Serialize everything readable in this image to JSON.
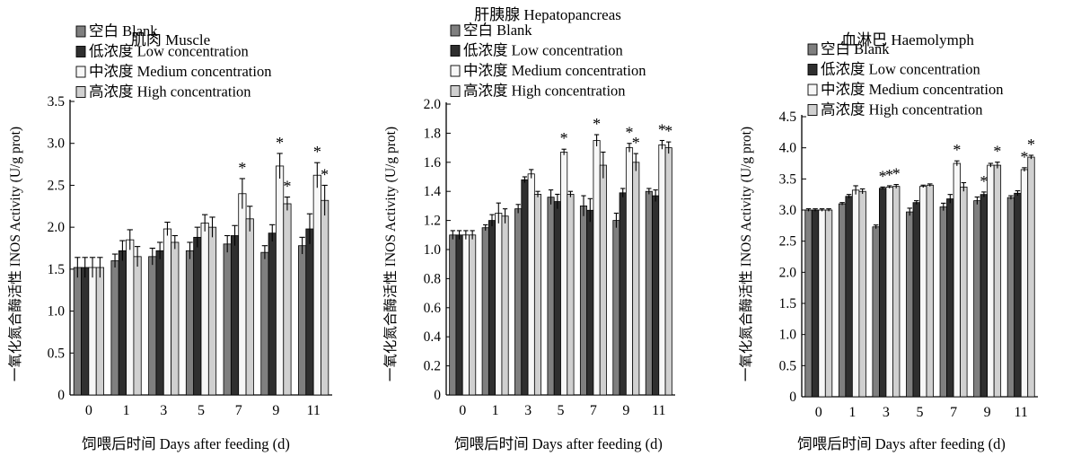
{
  "chart_data": [
    {
      "type": "bar",
      "title": "肌肉 Muscle",
      "xlabel": "饲喂后时间 Days after feeding (d)",
      "ylabel": "一氧化氮合酶活性 INOS Activity (U/g prot)",
      "ylim": [
        0,
        3.5
      ],
      "yticks": [
        "0",
        "0.5",
        "1.0",
        "1.5",
        "2.0",
        "2.5",
        "3.0",
        "3.5"
      ],
      "categories": [
        "0",
        "1",
        "3",
        "5",
        "7",
        "9",
        "11"
      ],
      "legend_position": "top-left",
      "grid": false,
      "series": [
        {
          "name": "空白 Blank",
          "color": "#7f7f7f",
          "values": [
            1.52,
            1.6,
            1.65,
            1.72,
            1.8,
            1.7,
            1.78
          ],
          "errors": [
            0.12,
            0.08,
            0.1,
            0.1,
            0.1,
            0.08,
            0.1
          ]
        },
        {
          "name": "低浓度 Low concentration",
          "color": "#2f2f2f",
          "values": [
            1.52,
            1.72,
            1.72,
            1.88,
            1.9,
            1.93,
            1.98
          ],
          "errors": [
            0.12,
            0.12,
            0.1,
            0.12,
            0.12,
            0.1,
            0.18
          ]
        },
        {
          "name": "中浓度 Medium concentration",
          "color": "#f7f7f7",
          "values": [
            1.52,
            1.85,
            1.98,
            2.05,
            2.4,
            2.73,
            2.62
          ],
          "errors": [
            0.12,
            0.12,
            0.08,
            0.1,
            0.18,
            0.15,
            0.15
          ]
        },
        {
          "name": "高浓度 High concentration",
          "color": "#d0d0d0",
          "values": [
            1.52,
            1.65,
            1.82,
            2.0,
            2.1,
            2.28,
            2.32
          ],
          "errors": [
            0.12,
            0.12,
            0.08,
            0.12,
            0.15,
            0.08,
            0.18
          ]
        }
      ],
      "annotations": [
        {
          "category": "7",
          "series": 2,
          "text": "*"
        },
        {
          "category": "9",
          "series": 2,
          "text": "*"
        },
        {
          "category": "9",
          "series": 3,
          "text": "*"
        },
        {
          "category": "11",
          "series": 2,
          "text": "*"
        },
        {
          "category": "11",
          "series": 3,
          "text": "*"
        }
      ]
    },
    {
      "type": "bar",
      "title": "肝胰腺 Hepatopancreas",
      "xlabel": "饲喂后时间 Days after feeding (d)",
      "ylabel": "一氧化氮合酶活性 INOS Activity (U/g prot)",
      "ylim": [
        0,
        2.0
      ],
      "yticks": [
        "0",
        "0.2",
        "0.4",
        "0.6",
        "0.8",
        "1.0",
        "1.2",
        "1.4",
        "1.6",
        "1.8",
        "2.0"
      ],
      "categories": [
        "0",
        "1",
        "3",
        "5",
        "7",
        "9",
        "11"
      ],
      "legend_position": "top-left",
      "grid": false,
      "series": [
        {
          "name": "空白 Blank",
          "color": "#7f7f7f",
          "values": [
            1.1,
            1.15,
            1.28,
            1.36,
            1.3,
            1.2,
            1.4
          ],
          "errors": [
            0.03,
            0.02,
            0.03,
            0.05,
            0.07,
            0.05,
            0.02
          ]
        },
        {
          "name": "低浓度 Low concentration",
          "color": "#2f2f2f",
          "values": [
            1.1,
            1.2,
            1.48,
            1.33,
            1.27,
            1.39,
            1.37
          ],
          "errors": [
            0.03,
            0.04,
            0.02,
            0.05,
            0.08,
            0.03,
            0.04
          ]
        },
        {
          "name": "中浓度 Medium concentration",
          "color": "#f7f7f7",
          "values": [
            1.1,
            1.25,
            1.52,
            1.67,
            1.75,
            1.7,
            1.72
          ],
          "errors": [
            0.03,
            0.07,
            0.03,
            0.02,
            0.04,
            0.03,
            0.03
          ]
        },
        {
          "name": "高浓度 High concentration",
          "color": "#d0d0d0",
          "values": [
            1.1,
            1.23,
            1.38,
            1.38,
            1.58,
            1.6,
            1.7
          ],
          "errors": [
            0.03,
            0.05,
            0.02,
            0.02,
            0.09,
            0.06,
            0.04
          ]
        }
      ],
      "annotations": [
        {
          "category": "5",
          "series": 2,
          "text": "*"
        },
        {
          "category": "7",
          "series": 2,
          "text": "*"
        },
        {
          "category": "9",
          "series": 2,
          "text": "*"
        },
        {
          "category": "9",
          "series": 3,
          "text": "*"
        },
        {
          "category": "11",
          "series": 2,
          "text": "*"
        },
        {
          "category": "11",
          "series": 3,
          "text": "*"
        }
      ]
    },
    {
      "type": "bar",
      "title": "血淋巴 Haemolymph",
      "xlabel": "饲喂后时间 Days after feeding (d)",
      "ylabel": "一氧化氮合酶活性 INOS Activity (U/g prot)",
      "ylim": [
        0,
        4.5
      ],
      "yticks": [
        "0",
        "0.5",
        "1.0",
        "1.5",
        "2.0",
        "2.5",
        "3.0",
        "3.5",
        "4.0",
        "4.5"
      ],
      "categories": [
        "0",
        "1",
        "3",
        "5",
        "7",
        "9",
        "11"
      ],
      "legend_position": "top-left",
      "grid": false,
      "series": [
        {
          "name": "空白 Blank",
          "color": "#7f7f7f",
          "values": [
            3.0,
            3.1,
            2.73,
            2.97,
            3.05,
            3.15,
            3.2
          ],
          "errors": [
            0.02,
            0.02,
            0.03,
            0.06,
            0.06,
            0.06,
            0.03
          ]
        },
        {
          "name": "低浓度 Low concentration",
          "color": "#2f2f2f",
          "values": [
            3.0,
            3.22,
            3.35,
            3.12,
            3.18,
            3.25,
            3.27
          ],
          "errors": [
            0.02,
            0.03,
            0.02,
            0.03,
            0.07,
            0.04,
            0.04
          ]
        },
        {
          "name": "中浓度 Medium concentration",
          "color": "#f7f7f7",
          "values": [
            3.0,
            3.32,
            3.37,
            3.38,
            3.75,
            3.72,
            3.65
          ],
          "errors": [
            0.02,
            0.07,
            0.02,
            0.02,
            0.04,
            0.03,
            0.03
          ]
        },
        {
          "name": "高浓度 High concentration",
          "color": "#d0d0d0",
          "values": [
            3.0,
            3.3,
            3.38,
            3.4,
            3.37,
            3.72,
            3.85
          ],
          "errors": [
            0.02,
            0.04,
            0.03,
            0.02,
            0.07,
            0.05,
            0.03
          ]
        }
      ],
      "annotations": [
        {
          "category": "3",
          "series": 1,
          "text": "*"
        },
        {
          "category": "3",
          "series": 2,
          "text": "*"
        },
        {
          "category": "3",
          "series": 3,
          "text": "*"
        },
        {
          "category": "7",
          "series": 2,
          "text": "*"
        },
        {
          "category": "9",
          "series": 1,
          "text": "*"
        },
        {
          "category": "9",
          "series": 3,
          "text": "*"
        },
        {
          "category": "11",
          "series": 2,
          "text": "*"
        },
        {
          "category": "11",
          "series": 3,
          "text": "*"
        }
      ]
    }
  ]
}
